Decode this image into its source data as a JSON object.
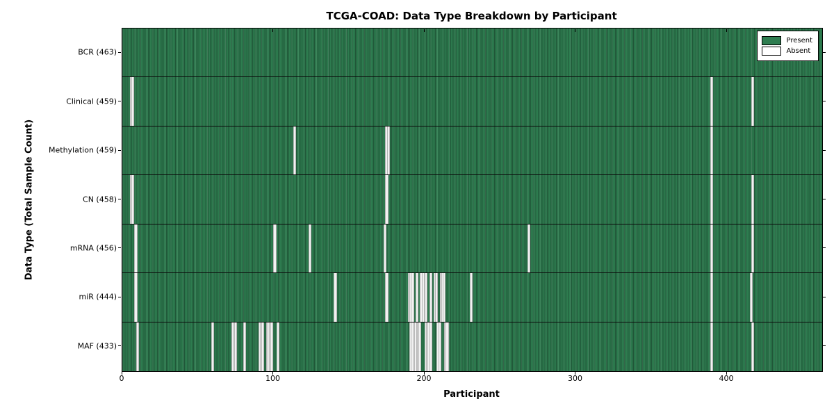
{
  "chart_data": {
    "type": "heatmap",
    "title": "TCGA-COAD: Data Type Breakdown by Participant",
    "xlabel": "Participant",
    "ylabel": "Data Type (Total Sample Count)",
    "xlim": [
      0,
      463
    ],
    "x_ticks": [
      0,
      100,
      200,
      300,
      400
    ],
    "grid": false,
    "legend_position": "upper-right",
    "legend": {
      "present_label": "Present",
      "absent_label": "Absent"
    },
    "colors": {
      "present": "#2e7d50",
      "absent": "#f2f2f2",
      "axis": "#000000",
      "background": "#ffffff"
    },
    "rows": [
      {
        "label": "BCR (463)",
        "data_type": "BCR",
        "total": 463,
        "absent_participants": []
      },
      {
        "label": "Clinical (459)",
        "data_type": "Clinical",
        "total": 459,
        "absent_participants": [
          5,
          6,
          389,
          416
        ]
      },
      {
        "label": "Methylation (459)",
        "data_type": "Methylation",
        "total": 459,
        "absent_participants": [
          113,
          174,
          175,
          389
        ]
      },
      {
        "label": "CN (458)",
        "data_type": "CN",
        "total": 458,
        "absent_participants": [
          5,
          6,
          174,
          389,
          416
        ]
      },
      {
        "label": "mRNA (456)",
        "data_type": "mRNA",
        "total": 456,
        "absent_participants": [
          8,
          100,
          123,
          173,
          268,
          389,
          416
        ]
      },
      {
        "label": "miR (444)",
        "data_type": "miR",
        "total": 444,
        "absent_participants": [
          8,
          140,
          174,
          189,
          190,
          191,
          194,
          197,
          198,
          200,
          203,
          206,
          207,
          210,
          211,
          212,
          230,
          389,
          415
        ]
      },
      {
        "label": "MAF (433)",
        "data_type": "MAF",
        "total": 433,
        "absent_participants": [
          9,
          59,
          72,
          73,
          74,
          80,
          90,
          91,
          92,
          95,
          96,
          97,
          98,
          102,
          190,
          191,
          192,
          193,
          195,
          196,
          200,
          201,
          202,
          203,
          208,
          209,
          213,
          214,
          389,
          416
        ]
      }
    ]
  }
}
